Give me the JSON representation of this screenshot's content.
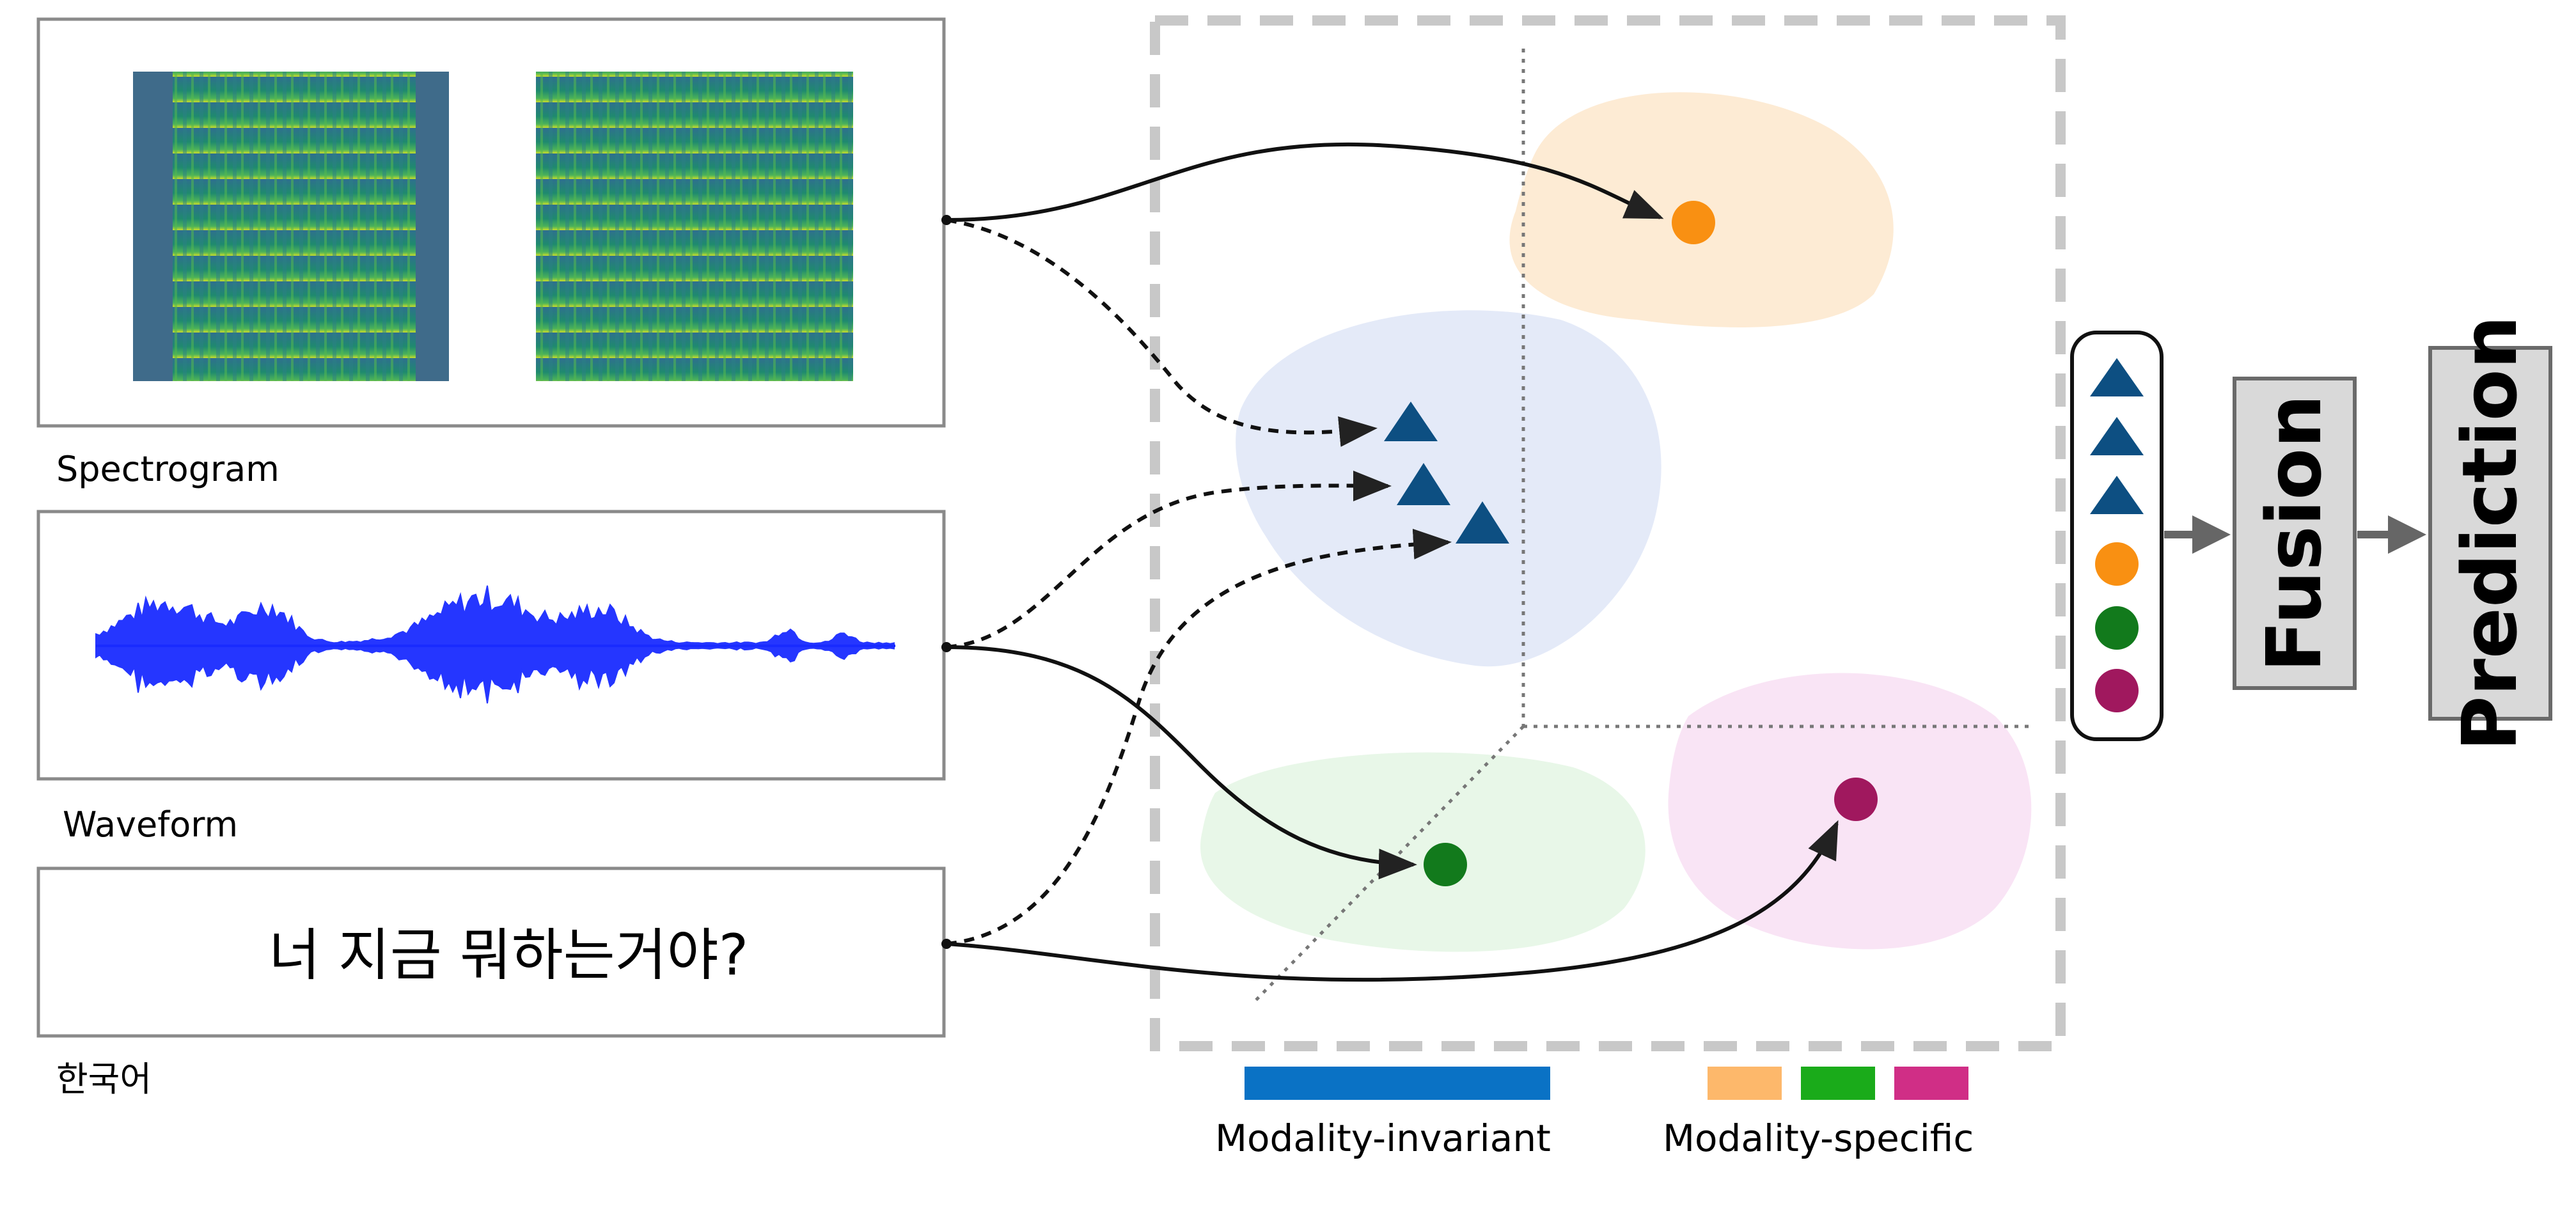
{
  "inputs": {
    "spectrogram_label": "Spectrogram",
    "waveform_label": "Waveform",
    "text_sentence": "너 지금 뭐하는거야?",
    "text_label": "한국어"
  },
  "legend": {
    "invariant_label": "Modality-invariant",
    "specific_label": "Modality-specific",
    "invariant_color": "#0a72c5",
    "specific_colors": [
      "#fdb86b",
      "#1aab1a",
      "#d02e86"
    ]
  },
  "pipeline": {
    "fusion_label": "Fusion",
    "prediction_label": "Prediction",
    "stack_items": [
      "triangle",
      "triangle",
      "triangle",
      "orange-dot",
      "green-dot",
      "purple-dot"
    ]
  },
  "colors": {
    "triangle": "#0d4f82",
    "orange_dot": "#f99012",
    "green_dot": "#127a1c",
    "purple_dot": "#a0185e",
    "region_orange": "#fdebd4",
    "region_blue": "#e4eaf8",
    "region_green": "#e8f7e8",
    "region_pink": "#f9e4f5"
  }
}
